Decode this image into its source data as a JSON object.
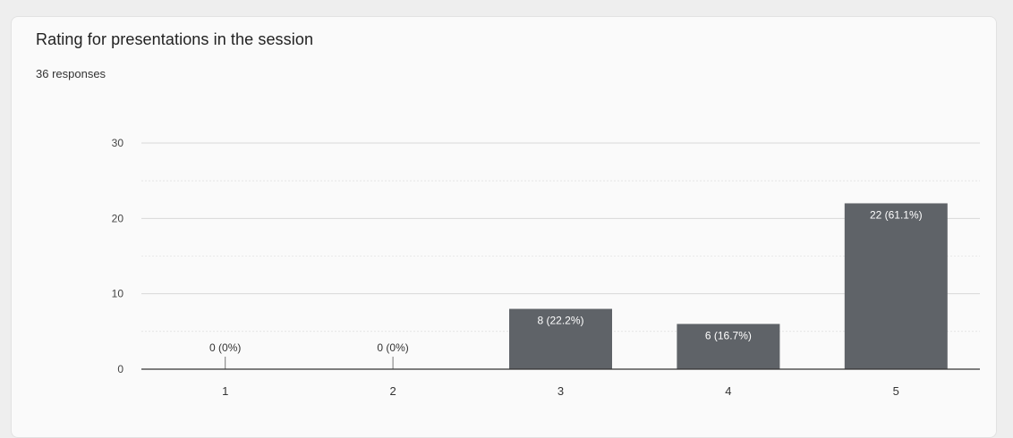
{
  "card": {
    "title": "Rating for presentations in the session",
    "responses": "36 responses"
  },
  "colors": {
    "bar": "#5f6368",
    "grid": "#d8d8d8",
    "axis": "#333333"
  },
  "chart_data": {
    "type": "bar",
    "title": "Rating for presentations in the session",
    "categories": [
      "1",
      "2",
      "3",
      "4",
      "5"
    ],
    "values": [
      0,
      0,
      8,
      6,
      22
    ],
    "data_labels": [
      "0 (0%)",
      "0 (0%)",
      "8 (22.2%)",
      "6 (16.7%)",
      "22 (61.1%)"
    ],
    "yticks": [
      0,
      10,
      20,
      30
    ],
    "ylim": [
      0,
      30
    ],
    "grid": true,
    "legend": "none",
    "xlabel": "",
    "ylabel": ""
  }
}
